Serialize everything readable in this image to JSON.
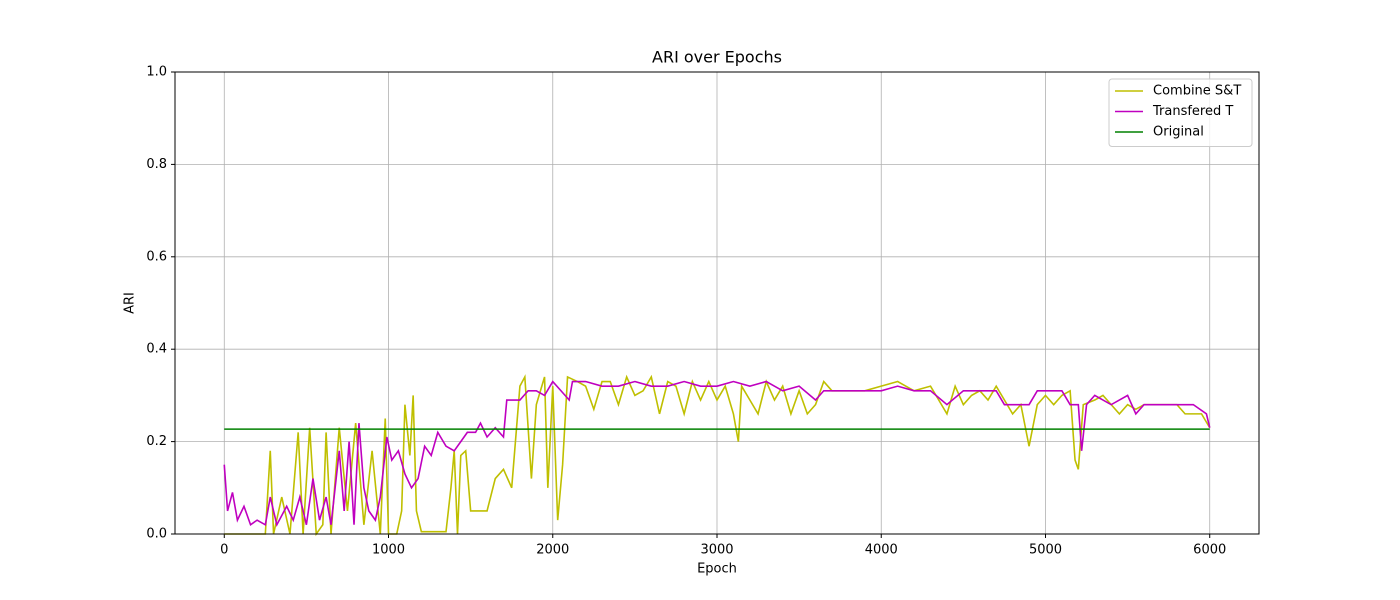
{
  "chart_data": {
    "type": "line",
    "title": "ARI over Epochs",
    "xlabel": "Epoch",
    "ylabel": "ARI",
    "xlim": [
      -300,
      6300
    ],
    "ylim": [
      0,
      1
    ],
    "xticks": [
      0,
      1000,
      2000,
      3000,
      4000,
      5000,
      6000
    ],
    "yticks": [
      {
        "value": 0,
        "label": "0.0"
      },
      0.2,
      0.4,
      0.6,
      0.8,
      {
        "value": 1,
        "label": "1.0"
      }
    ],
    "grid": true,
    "legend": "upper right",
    "series": [
      {
        "name": "Combine S&T",
        "color": "#bfbf00",
        "x": [
          0,
          50,
          100,
          150,
          200,
          250,
          280,
          300,
          350,
          400,
          450,
          480,
          520,
          560,
          600,
          620,
          650,
          700,
          750,
          800,
          850,
          900,
          950,
          980,
          1000,
          1050,
          1080,
          1100,
          1130,
          1150,
          1170,
          1200,
          1300,
          1350,
          1380,
          1400,
          1420,
          1440,
          1470,
          1500,
          1600,
          1650,
          1700,
          1750,
          1800,
          1830,
          1870,
          1900,
          1950,
          1970,
          2000,
          2030,
          2060,
          2090,
          2150,
          2200,
          2250,
          2300,
          2350,
          2400,
          2450,
          2500,
          2550,
          2600,
          2650,
          2700,
          2750,
          2800,
          2850,
          2900,
          2950,
          3000,
          3050,
          3100,
          3130,
          3150,
          3200,
          3250,
          3300,
          3350,
          3400,
          3450,
          3500,
          3550,
          3600,
          3650,
          3700,
          3800,
          3900,
          4000,
          4100,
          4200,
          4300,
          4350,
          4400,
          4450,
          4500,
          4550,
          4600,
          4650,
          4700,
          4750,
          4800,
          4850,
          4900,
          4950,
          5000,
          5050,
          5100,
          5150,
          5180,
          5200,
          5230,
          5300,
          5350,
          5400,
          5450,
          5500,
          5550,
          5600,
          5700,
          5800,
          5850,
          5950,
          6000
        ],
        "values": [
          0,
          0,
          0,
          0,
          0,
          0,
          0.18,
          0,
          0.08,
          0,
          0.22,
          0,
          0.23,
          0,
          0.02,
          0.22,
          0,
          0.23,
          0.05,
          0.24,
          0.02,
          0.18,
          0,
          0.25,
          0,
          0,
          0.05,
          0.28,
          0.17,
          0.3,
          0.05,
          0.005,
          0.005,
          0.005,
          0.1,
          0.18,
          0,
          0.17,
          0.18,
          0.05,
          0.05,
          0.12,
          0.14,
          0.1,
          0.32,
          0.34,
          0.12,
          0.28,
          0.34,
          0.1,
          0.32,
          0.03,
          0.15,
          0.34,
          0.33,
          0.32,
          0.27,
          0.33,
          0.33,
          0.28,
          0.34,
          0.3,
          0.31,
          0.34,
          0.26,
          0.33,
          0.32,
          0.26,
          0.33,
          0.29,
          0.33,
          0.29,
          0.32,
          0.26,
          0.2,
          0.32,
          0.29,
          0.26,
          0.33,
          0.29,
          0.32,
          0.26,
          0.31,
          0.26,
          0.28,
          0.33,
          0.31,
          0.31,
          0.31,
          0.32,
          0.33,
          0.31,
          0.32,
          0.29,
          0.26,
          0.32,
          0.28,
          0.3,
          0.31,
          0.29,
          0.32,
          0.29,
          0.26,
          0.28,
          0.19,
          0.28,
          0.3,
          0.28,
          0.3,
          0.31,
          0.16,
          0.14,
          0.28,
          0.29,
          0.3,
          0.28,
          0.26,
          0.28,
          0.27,
          0.28,
          0.28,
          0.28,
          0.26,
          0.26,
          0.23
        ]
      },
      {
        "name": "Transfered T",
        "color": "#bf00bf",
        "x": [
          0,
          20,
          50,
          80,
          120,
          160,
          200,
          250,
          280,
          320,
          380,
          420,
          460,
          500,
          540,
          580,
          620,
          650,
          700,
          730,
          760,
          790,
          820,
          850,
          880,
          920,
          950,
          990,
          1020,
          1060,
          1100,
          1140,
          1180,
          1220,
          1260,
          1300,
          1350,
          1400,
          1440,
          1480,
          1530,
          1560,
          1600,
          1650,
          1700,
          1720,
          1800,
          1850,
          1900,
          1950,
          2000,
          2050,
          2100,
          2120,
          2200,
          2300,
          2400,
          2500,
          2600,
          2700,
          2800,
          2900,
          3000,
          3100,
          3200,
          3300,
          3400,
          3500,
          3600,
          3650,
          3800,
          3900,
          4000,
          4100,
          4200,
          4300,
          4400,
          4500,
          4600,
          4700,
          4750,
          4900,
          4950,
          5000,
          5100,
          5150,
          5200,
          5220,
          5250,
          5300,
          5400,
          5500,
          5550,
          5600,
          5800,
          5900,
          5980,
          6000
        ],
        "values": [
          0.15,
          0.05,
          0.09,
          0.03,
          0.06,
          0.02,
          0.03,
          0.02,
          0.08,
          0.02,
          0.06,
          0.03,
          0.08,
          0.02,
          0.12,
          0.03,
          0.08,
          0.02,
          0.18,
          0.05,
          0.2,
          0.02,
          0.24,
          0.1,
          0.05,
          0.03,
          0.08,
          0.21,
          0.16,
          0.18,
          0.13,
          0.1,
          0.12,
          0.19,
          0.17,
          0.22,
          0.19,
          0.18,
          0.2,
          0.22,
          0.22,
          0.24,
          0.21,
          0.23,
          0.21,
          0.29,
          0.29,
          0.31,
          0.31,
          0.3,
          0.33,
          0.31,
          0.29,
          0.33,
          0.33,
          0.32,
          0.32,
          0.33,
          0.32,
          0.32,
          0.33,
          0.32,
          0.32,
          0.33,
          0.32,
          0.33,
          0.31,
          0.32,
          0.29,
          0.31,
          0.31,
          0.31,
          0.31,
          0.32,
          0.31,
          0.31,
          0.28,
          0.31,
          0.31,
          0.31,
          0.28,
          0.28,
          0.31,
          0.31,
          0.31,
          0.28,
          0.28,
          0.18,
          0.28,
          0.3,
          0.28,
          0.3,
          0.26,
          0.28,
          0.28,
          0.28,
          0.26,
          0.23
        ]
      },
      {
        "name": "Original",
        "color": "#008000",
        "x": [
          0,
          6000
        ],
        "values": [
          0.227,
          0.227
        ]
      }
    ]
  }
}
